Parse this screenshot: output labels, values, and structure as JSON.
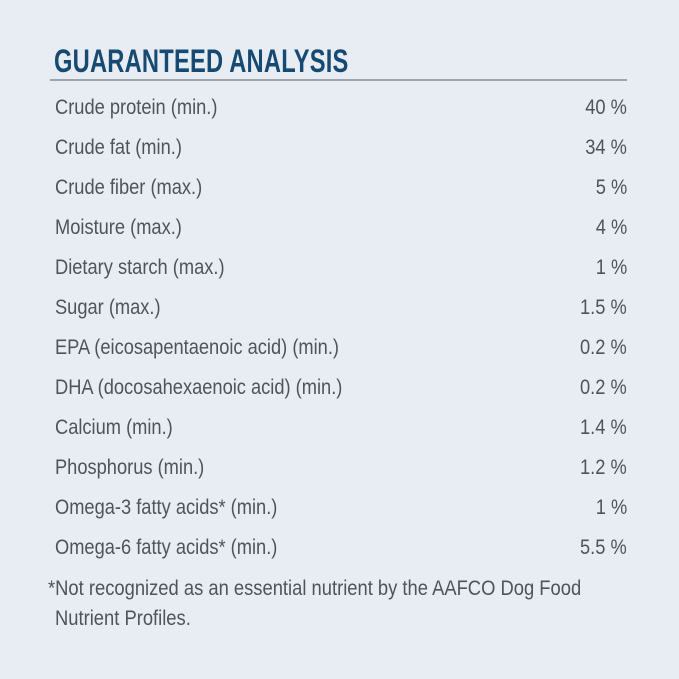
{
  "page": {
    "background_color": "#e8edf3",
    "text_color": "#4e545b",
    "accent_color": "#174a72",
    "rule_color": "#9aa4ae"
  },
  "header": {
    "title": "GUARANTEED ANALYSIS"
  },
  "analysis": {
    "rows": [
      {
        "label": "Crude protein (min.)",
        "value": "40 %"
      },
      {
        "label": "Crude fat (min.)",
        "value": "34 %"
      },
      {
        "label": "Crude fiber (max.)",
        "value": "5 %"
      },
      {
        "label": "Moisture (max.)",
        "value": "4 %"
      },
      {
        "label": "Dietary starch (max.)",
        "value": "1 %"
      },
      {
        "label": "Sugar (max.)",
        "value": "1.5 %"
      },
      {
        "label": "EPA (eicosapentaenoic acid) (min.)",
        "value": "0.2 %"
      },
      {
        "label": "DHA (docosahexaenoic acid) (min.)",
        "value": "0.2 %"
      },
      {
        "label": "Calcium (min.)",
        "value": "1.4 %"
      },
      {
        "label": "Phosphorus (min.)",
        "value": "1.2 %"
      },
      {
        "label": "Omega-3 fatty acids* (min.)",
        "value": "1 %"
      },
      {
        "label": "Omega-6 fatty acids* (min.)",
        "value": "5.5 %"
      }
    ]
  },
  "footnote": {
    "text": "*Not recognized as an essential nutrient by the AAFCO Dog Food Nutrient Profiles."
  }
}
